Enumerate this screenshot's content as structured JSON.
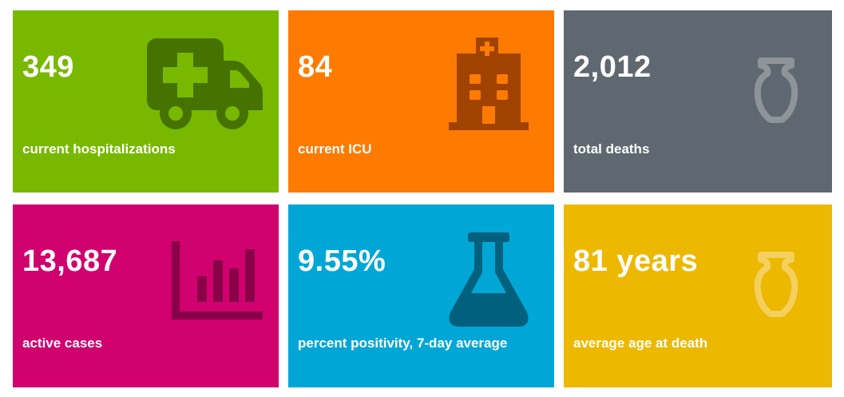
{
  "tiles": [
    {
      "value": "349",
      "label": "current hospitalizations",
      "icon": "ambulance-icon",
      "bg": "#78B900",
      "icon_color": "#467300"
    },
    {
      "value": "84",
      "label": "current ICU",
      "icon": "hospital-icon",
      "bg": "#FF7A00",
      "icon_color": "#A14300"
    },
    {
      "value": "2,012",
      "label": "total deaths",
      "icon": "urn-icon",
      "bg": "#5F6870",
      "icon_color": "#8F9499"
    },
    {
      "value": "13,687",
      "label": "active cases",
      "icon": "bar-chart-icon",
      "bg": "#D0006F",
      "icon_color": "#8A0048"
    },
    {
      "value": "9.55%",
      "label": "percent positivity, 7-day average",
      "icon": "flask-icon",
      "bg": "#00A7D6",
      "icon_color": "#00617E"
    },
    {
      "value": "81 years",
      "label": "average age at death",
      "icon": "urn-icon",
      "bg": "#EDB800",
      "icon_color": "#F4D15E"
    }
  ]
}
